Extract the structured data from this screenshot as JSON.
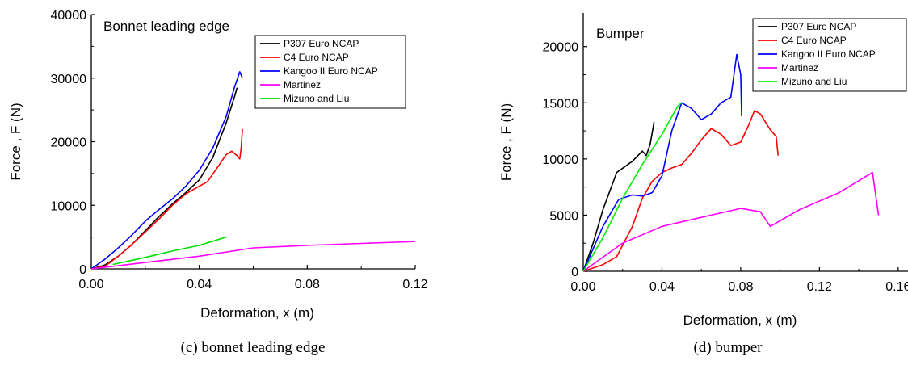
{
  "chart_data": [
    {
      "type": "line",
      "title": "Bonnet leading edge",
      "caption": "(c)  bonnet leading edge",
      "xlabel": "Deformation, x (m)",
      "ylabel": "Force , F (N)",
      "xlim": [
        0,
        0.12
      ],
      "ylim": [
        0,
        40000
      ],
      "xticks": [
        "0.00",
        "0.04",
        "0.08",
        "0.12"
      ],
      "yticks": [
        "0",
        "10000",
        "20000",
        "30000",
        "40000"
      ],
      "xtick_values": [
        0,
        0.04,
        0.08,
        0.12
      ],
      "ytick_values": [
        0,
        10000,
        20000,
        30000,
        40000
      ],
      "grid": false,
      "legend_position": "top-right",
      "series": [
        {
          "name": "P307 Euro NCAP",
          "color": "#000000",
          "points": [
            [
              0,
              0
            ],
            [
              0.005,
              600
            ],
            [
              0.01,
              2000
            ],
            [
              0.015,
              3800
            ],
            [
              0.02,
              6000
            ],
            [
              0.025,
              8200
            ],
            [
              0.03,
              10200
            ],
            [
              0.035,
              12000
            ],
            [
              0.04,
              14000
            ],
            [
              0.045,
              17500
            ],
            [
              0.05,
              23000
            ],
            [
              0.053,
              27000
            ],
            [
              0.054,
              28500
            ]
          ]
        },
        {
          "name": "C4 Euro NCAP",
          "color": "#ff0000",
          "points": [
            [
              0,
              0
            ],
            [
              0.005,
              400
            ],
            [
              0.01,
              2000
            ],
            [
              0.015,
              3800
            ],
            [
              0.02,
              5800
            ],
            [
              0.025,
              7800
            ],
            [
              0.03,
              10000
            ],
            [
              0.035,
              11800
            ],
            [
              0.04,
              13000
            ],
            [
              0.043,
              13700
            ],
            [
              0.046,
              15500
            ],
            [
              0.05,
              18000
            ],
            [
              0.052,
              18500
            ],
            [
              0.054,
              17800
            ],
            [
              0.055,
              17300
            ],
            [
              0.0555,
              19000
            ],
            [
              0.056,
              22000
            ]
          ]
        },
        {
          "name": "Kangoo II Euro NCAP",
          "color": "#0000ff",
          "points": [
            [
              0,
              0
            ],
            [
              0.005,
              1500
            ],
            [
              0.01,
              3300
            ],
            [
              0.015,
              5300
            ],
            [
              0.02,
              7500
            ],
            [
              0.025,
              9300
            ],
            [
              0.03,
              11000
            ],
            [
              0.035,
              13000
            ],
            [
              0.04,
              15500
            ],
            [
              0.045,
              19000
            ],
            [
              0.05,
              24000
            ],
            [
              0.053,
              28500
            ],
            [
              0.055,
              31000
            ],
            [
              0.056,
              30000
            ]
          ]
        },
        {
          "name": "Martinez",
          "color": "#ff00ff",
          "points": [
            [
              0,
              0
            ],
            [
              0.02,
              1000
            ],
            [
              0.04,
              2000
            ],
            [
              0.06,
              3300
            ],
            [
              0.08,
              3700
            ],
            [
              0.1,
              4000
            ],
            [
              0.12,
              4300
            ]
          ]
        },
        {
          "name": "Mizuno and Liu",
          "color": "#00dd00",
          "points": [
            [
              0.008,
              700
            ],
            [
              0.02,
              1800
            ],
            [
              0.03,
              2800
            ],
            [
              0.04,
              3700
            ],
            [
              0.05,
              5000
            ]
          ]
        }
      ]
    },
    {
      "type": "line",
      "title": "Bumper",
      "caption": "(d)  bumper",
      "xlabel": "Deformation, x (m)",
      "ylabel": "Force , F (N)",
      "xlim": [
        0,
        0.165
      ],
      "ylim": [
        0,
        23000
      ],
      "xticks": [
        "0.00",
        "0.04",
        "0.08",
        "0.12",
        "0.16"
      ],
      "yticks": [
        "0",
        "5000",
        "10000",
        "15000",
        "20000"
      ],
      "xtick_values": [
        0,
        0.04,
        0.08,
        0.12,
        0.16
      ],
      "ytick_values": [
        0,
        5000,
        10000,
        15000,
        20000
      ],
      "grid": false,
      "legend_position": "top-right",
      "series": [
        {
          "name": "P307 Euro NCAP",
          "color": "#000000",
          "points": [
            [
              0,
              0
            ],
            [
              0.005,
              2500
            ],
            [
              0.01,
              5500
            ],
            [
              0.017,
              8800
            ],
            [
              0.025,
              9800
            ],
            [
              0.03,
              10700
            ],
            [
              0.032,
              10300
            ],
            [
              0.034,
              11300
            ],
            [
              0.036,
              13300
            ]
          ]
        },
        {
          "name": "C4 Euro NCAP",
          "color": "#ff0000",
          "points": [
            [
              0,
              0
            ],
            [
              0.01,
              600
            ],
            [
              0.017,
              1300
            ],
            [
              0.025,
              4000
            ],
            [
              0.03,
              6500
            ],
            [
              0.035,
              8000
            ],
            [
              0.04,
              8800
            ],
            [
              0.045,
              9200
            ],
            [
              0.05,
              9500
            ],
            [
              0.055,
              10500
            ],
            [
              0.06,
              11700
            ],
            [
              0.065,
              12700
            ],
            [
              0.07,
              12200
            ],
            [
              0.075,
              11200
            ],
            [
              0.08,
              11500
            ],
            [
              0.084,
              13000
            ],
            [
              0.087,
              14300
            ],
            [
              0.09,
              14000
            ],
            [
              0.095,
              12600
            ],
            [
              0.098,
              12000
            ],
            [
              0.099,
              10300
            ]
          ]
        },
        {
          "name": "Kangoo II Euro NCAP",
          "color": "#0000ff",
          "points": [
            [
              0,
              0
            ],
            [
              0.01,
              4000
            ],
            [
              0.018,
              6400
            ],
            [
              0.025,
              6800
            ],
            [
              0.03,
              6700
            ],
            [
              0.035,
              7000
            ],
            [
              0.04,
              8500
            ],
            [
              0.045,
              12500
            ],
            [
              0.05,
              15000
            ],
            [
              0.055,
              14500
            ],
            [
              0.06,
              13500
            ],
            [
              0.065,
              14000
            ],
            [
              0.07,
              15000
            ],
            [
              0.075,
              15500
            ],
            [
              0.078,
              19300
            ],
            [
              0.08,
              17500
            ],
            [
              0.0805,
              13800
            ]
          ]
        },
        {
          "name": "Martinez",
          "color": "#ff00ff",
          "points": [
            [
              0,
              0
            ],
            [
              0.02,
              2500
            ],
            [
              0.04,
              4000
            ],
            [
              0.06,
              4800
            ],
            [
              0.08,
              5600
            ],
            [
              0.09,
              5300
            ],
            [
              0.095,
              4000
            ],
            [
              0.11,
              5500
            ],
            [
              0.13,
              7000
            ],
            [
              0.147,
              8800
            ],
            [
              0.15,
              5000
            ]
          ]
        },
        {
          "name": "Mizuno and Liu",
          "color": "#00ee00",
          "points": [
            [
              0,
              0
            ],
            [
              0.01,
              3000
            ],
            [
              0.02,
              6500
            ],
            [
              0.03,
              9500
            ],
            [
              0.04,
              12200
            ],
            [
              0.048,
              14700
            ],
            [
              0.05,
              15000
            ]
          ]
        }
      ]
    }
  ]
}
